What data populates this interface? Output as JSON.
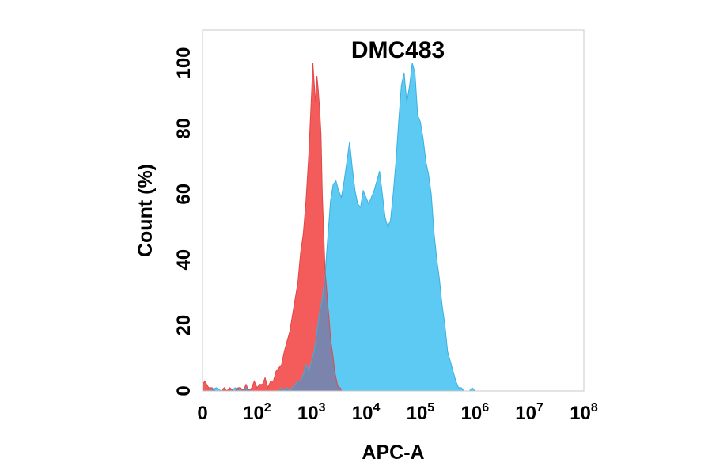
{
  "chart_data": {
    "type": "area",
    "title": "DMC483",
    "xlabel": "APC-A",
    "ylabel": "Count  (%)",
    "x_scale": "log",
    "xlim": [
      10,
      100000000
    ],
    "ylim": [
      0,
      110
    ],
    "x_ticks": [
      {
        "value": 10,
        "base": "0",
        "exp": ""
      },
      {
        "value": 100,
        "base": "10",
        "exp": "2"
      },
      {
        "value": 1000,
        "base": "10",
        "exp": "3"
      },
      {
        "value": 10000,
        "base": "10",
        "exp": "4"
      },
      {
        "value": 100000,
        "base": "10",
        "exp": "5"
      },
      {
        "value": 1000000,
        "base": "10",
        "exp": "6"
      },
      {
        "value": 10000000,
        "base": "10",
        "exp": "7"
      },
      {
        "value": 100000000,
        "base": "10",
        "exp": "8"
      }
    ],
    "y_ticks": [
      "0",
      "20",
      "40",
      "60",
      "80",
      "100"
    ],
    "grid": false,
    "colors": {
      "control": "#f45b5b",
      "sample": "#5ccaf2",
      "overlap": "#7a84ac",
      "sample_edge": "#3ab0e0",
      "control_edge": "#e04848"
    },
    "series": [
      {
        "key": "control",
        "points": [
          [
            10,
            2
          ],
          [
            11,
            3
          ],
          [
            13,
            1
          ],
          [
            15,
            1
          ],
          [
            17,
            0
          ],
          [
            20,
            0
          ],
          [
            22,
            0
          ],
          [
            25,
            1
          ],
          [
            28,
            0
          ],
          [
            32,
            1
          ],
          [
            36,
            0
          ],
          [
            40,
            0
          ],
          [
            45,
            1
          ],
          [
            50,
            1
          ],
          [
            56,
            0
          ],
          [
            63,
            2
          ],
          [
            71,
            0
          ],
          [
            80,
            1
          ],
          [
            89,
            3
          ],
          [
            100,
            1
          ],
          [
            112,
            2
          ],
          [
            126,
            2
          ],
          [
            141,
            4
          ],
          [
            158,
            1
          ],
          [
            178,
            3
          ],
          [
            200,
            3
          ],
          [
            224,
            6
          ],
          [
            251,
            7
          ],
          [
            282,
            8
          ],
          [
            316,
            12
          ],
          [
            355,
            15
          ],
          [
            398,
            18
          ],
          [
            447,
            23
          ],
          [
            501,
            28
          ],
          [
            562,
            33
          ],
          [
            631,
            42
          ],
          [
            708,
            48
          ],
          [
            794,
            58
          ],
          [
            891,
            72
          ],
          [
            1000,
            90
          ],
          [
            1060,
            100
          ],
          [
            1120,
            94
          ],
          [
            1190,
            88
          ],
          [
            1260,
            96
          ],
          [
            1330,
            92
          ],
          [
            1410,
            86
          ],
          [
            1500,
            78
          ],
          [
            1580,
            60
          ],
          [
            1680,
            48
          ],
          [
            1780,
            36
          ],
          [
            1880,
            32
          ],
          [
            2000,
            26
          ],
          [
            2110,
            22
          ],
          [
            2240,
            16
          ],
          [
            2370,
            13
          ],
          [
            2510,
            10
          ],
          [
            2660,
            6
          ],
          [
            2820,
            4
          ],
          [
            2990,
            2
          ],
          [
            3160,
            1
          ],
          [
            3350,
            1
          ],
          [
            3550,
            0
          ],
          [
            3760,
            0
          ],
          [
            3980,
            0
          ],
          [
            4470,
            0
          ],
          [
            5010,
            0
          ]
        ]
      },
      {
        "key": "sample",
        "points": [
          [
            10,
            0
          ],
          [
            13,
            0
          ],
          [
            18,
            1
          ],
          [
            22,
            0
          ],
          [
            32,
            0
          ],
          [
            40,
            1
          ],
          [
            50,
            0
          ],
          [
            63,
            1
          ],
          [
            79,
            0
          ],
          [
            100,
            0
          ],
          [
            126,
            0
          ],
          [
            158,
            0
          ],
          [
            200,
            0
          ],
          [
            251,
            0
          ],
          [
            282,
            1
          ],
          [
            316,
            0
          ],
          [
            355,
            1
          ],
          [
            398,
            0
          ],
          [
            447,
            1
          ],
          [
            501,
            2
          ],
          [
            562,
            3
          ],
          [
            631,
            3
          ],
          [
            708,
            5
          ],
          [
            794,
            8
          ],
          [
            891,
            6
          ],
          [
            1000,
            9
          ],
          [
            1120,
            12
          ],
          [
            1260,
            18
          ],
          [
            1410,
            24
          ],
          [
            1580,
            28
          ],
          [
            1780,
            36
          ],
          [
            2000,
            47
          ],
          [
            2240,
            58
          ],
          [
            2510,
            63
          ],
          [
            2820,
            64
          ],
          [
            3160,
            61
          ],
          [
            3550,
            59
          ],
          [
            3980,
            64
          ],
          [
            4470,
            70
          ],
          [
            5010,
            76
          ],
          [
            5620,
            68
          ],
          [
            6310,
            61
          ],
          [
            7080,
            57
          ],
          [
            7940,
            56
          ],
          [
            8910,
            61
          ],
          [
            10000,
            59
          ],
          [
            11200,
            57
          ],
          [
            12600,
            59
          ],
          [
            14100,
            61
          ],
          [
            15800,
            64
          ],
          [
            17800,
            67
          ],
          [
            20000,
            60
          ],
          [
            22400,
            53
          ],
          [
            25100,
            50
          ],
          [
            28200,
            52
          ],
          [
            31600,
            60
          ],
          [
            35500,
            70
          ],
          [
            39800,
            82
          ],
          [
            44700,
            93
          ],
          [
            50100,
            97
          ],
          [
            56200,
            88
          ],
          [
            63100,
            93
          ],
          [
            70800,
            100
          ],
          [
            79400,
            97
          ],
          [
            89100,
            84
          ],
          [
            100000,
            82
          ],
          [
            112000,
            77
          ],
          [
            126000,
            70
          ],
          [
            141000,
            66
          ],
          [
            158000,
            60
          ],
          [
            178000,
            48
          ],
          [
            200000,
            40
          ],
          [
            224000,
            34
          ],
          [
            251000,
            26
          ],
          [
            282000,
            20
          ],
          [
            316000,
            12
          ],
          [
            355000,
            9
          ],
          [
            398000,
            6
          ],
          [
            447000,
            3
          ],
          [
            501000,
            1
          ],
          [
            562000,
            1
          ],
          [
            631000,
            0
          ],
          [
            708000,
            0
          ],
          [
            794000,
            0
          ],
          [
            891000,
            1
          ],
          [
            1000000,
            0
          ],
          [
            1260000,
            0
          ],
          [
            1580000,
            0
          ],
          [
            2000000,
            0
          ]
        ]
      }
    ]
  }
}
